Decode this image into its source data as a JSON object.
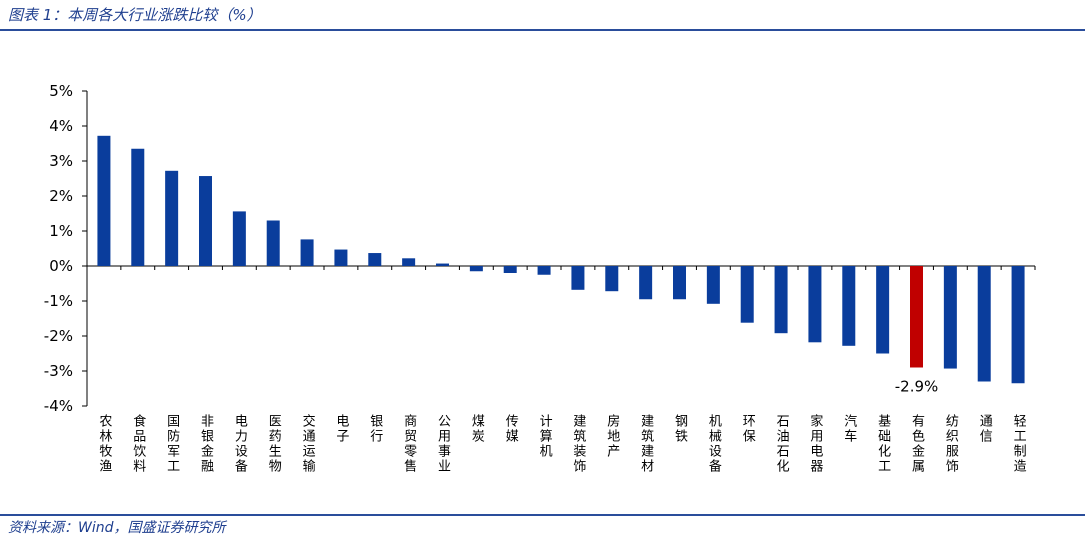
{
  "caption": "图表 1：本周各大行业涨跌比较（%）",
  "source": "资料来源：Wind，国盛证券研究所",
  "colors": {
    "bar": "#0a3d9c",
    "highlight": "#c00000",
    "rule": "#2a4d9b",
    "caption": "#1f3f8f"
  },
  "chart_data": {
    "type": "bar",
    "title": "",
    "xlabel": "",
    "ylabel": "",
    "ylim": [
      -4,
      5
    ],
    "yticks": [
      5,
      4,
      3,
      2,
      1,
      0,
      -1,
      -2,
      -3,
      -4
    ],
    "ytick_labels": [
      "5%",
      "4%",
      "3%",
      "2%",
      "1%",
      "0%",
      "-1%",
      "-2%",
      "-3%",
      "-4%"
    ],
    "categories": [
      "农林牧渔",
      "食品饮料",
      "国防军工",
      "非银金融",
      "电力设备",
      "医药生物",
      "交通运输",
      "电子",
      "银行",
      "商贸零售",
      "公用事业",
      "煤炭",
      "传媒",
      "计算机",
      "建筑装饰",
      "房地产",
      "建筑建材",
      "钢铁",
      "机械设备",
      "环保",
      "石油石化",
      "家用电器",
      "汽车",
      "基础化工",
      "有色金属",
      "纺织服饰",
      "通信",
      "轻工制造"
    ],
    "values": [
      3.72,
      3.35,
      2.72,
      2.57,
      1.56,
      1.3,
      0.76,
      0.47,
      0.37,
      0.22,
      0.07,
      -0.15,
      -0.2,
      -0.25,
      -0.68,
      -0.72,
      -0.95,
      -0.95,
      -1.08,
      -1.62,
      -1.92,
      -2.18,
      -2.28,
      -2.5,
      -2.9,
      -2.93,
      -3.3,
      -3.35
    ],
    "highlight_index": 24,
    "data_labels": [
      {
        "index": 24,
        "text": "-2.9%"
      }
    ],
    "legend": "none",
    "grid": false
  }
}
